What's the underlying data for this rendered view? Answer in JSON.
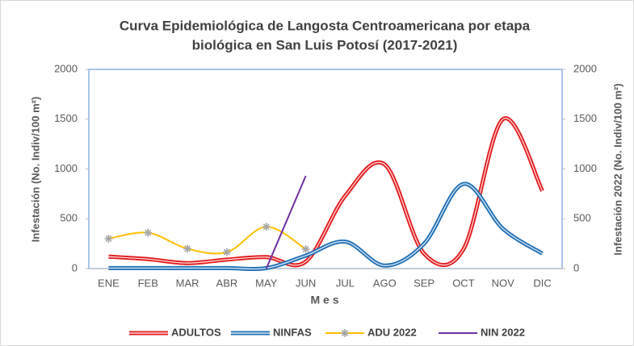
{
  "chart_data": {
    "type": "line",
    "title": [
      "Curva Epidemiológica de Langosta Centroamericana por etapa",
      "biológica en San Luis Potosí (2017-2021)"
    ],
    "xlabel": "M e s",
    "ylabel": "Infestación (No. Indiv/100 m²)",
    "y2label": "Infestación 2022 (No. Indiv/100 m²)",
    "categories": [
      "ENE",
      "FEB",
      "MAR",
      "ABR",
      "MAY",
      "JUN",
      "JUL",
      "AGO",
      "SEP",
      "OCT",
      "NOV",
      "DIC"
    ],
    "ylim": [
      0,
      2000
    ],
    "yticks": [
      0,
      500,
      1000,
      1500,
      2000
    ],
    "y2lim": [
      0,
      2000
    ],
    "y2ticks": [
      0,
      500,
      1000,
      1500,
      2000
    ],
    "grid": false,
    "legend": "bottom",
    "series": [
      {
        "name": "ADULTOS",
        "color": "#e31a1c",
        "style": "double",
        "values": [
          120,
          95,
          55,
          90,
          115,
          70,
          730,
          1045,
          150,
          195,
          1500,
          780
        ]
      },
      {
        "name": "NINFAS",
        "color": "#1f6fb5",
        "style": "double",
        "values": [
          5,
          5,
          5,
          5,
          5,
          130,
          270,
          30,
          250,
          850,
          400,
          150
        ]
      },
      {
        "name": "ADU 2022",
        "color": "#ffc000",
        "marker": "asterisk",
        "axis": "y2",
        "values": [
          300,
          360,
          200,
          165,
          420,
          195,
          null,
          null,
          null,
          null,
          null,
          null
        ]
      },
      {
        "name": "NIN 2022",
        "color": "#7030a0",
        "axis": "y2",
        "values": [
          null,
          null,
          null,
          null,
          0,
          930,
          null,
          null,
          null,
          null,
          null,
          null
        ]
      }
    ]
  }
}
